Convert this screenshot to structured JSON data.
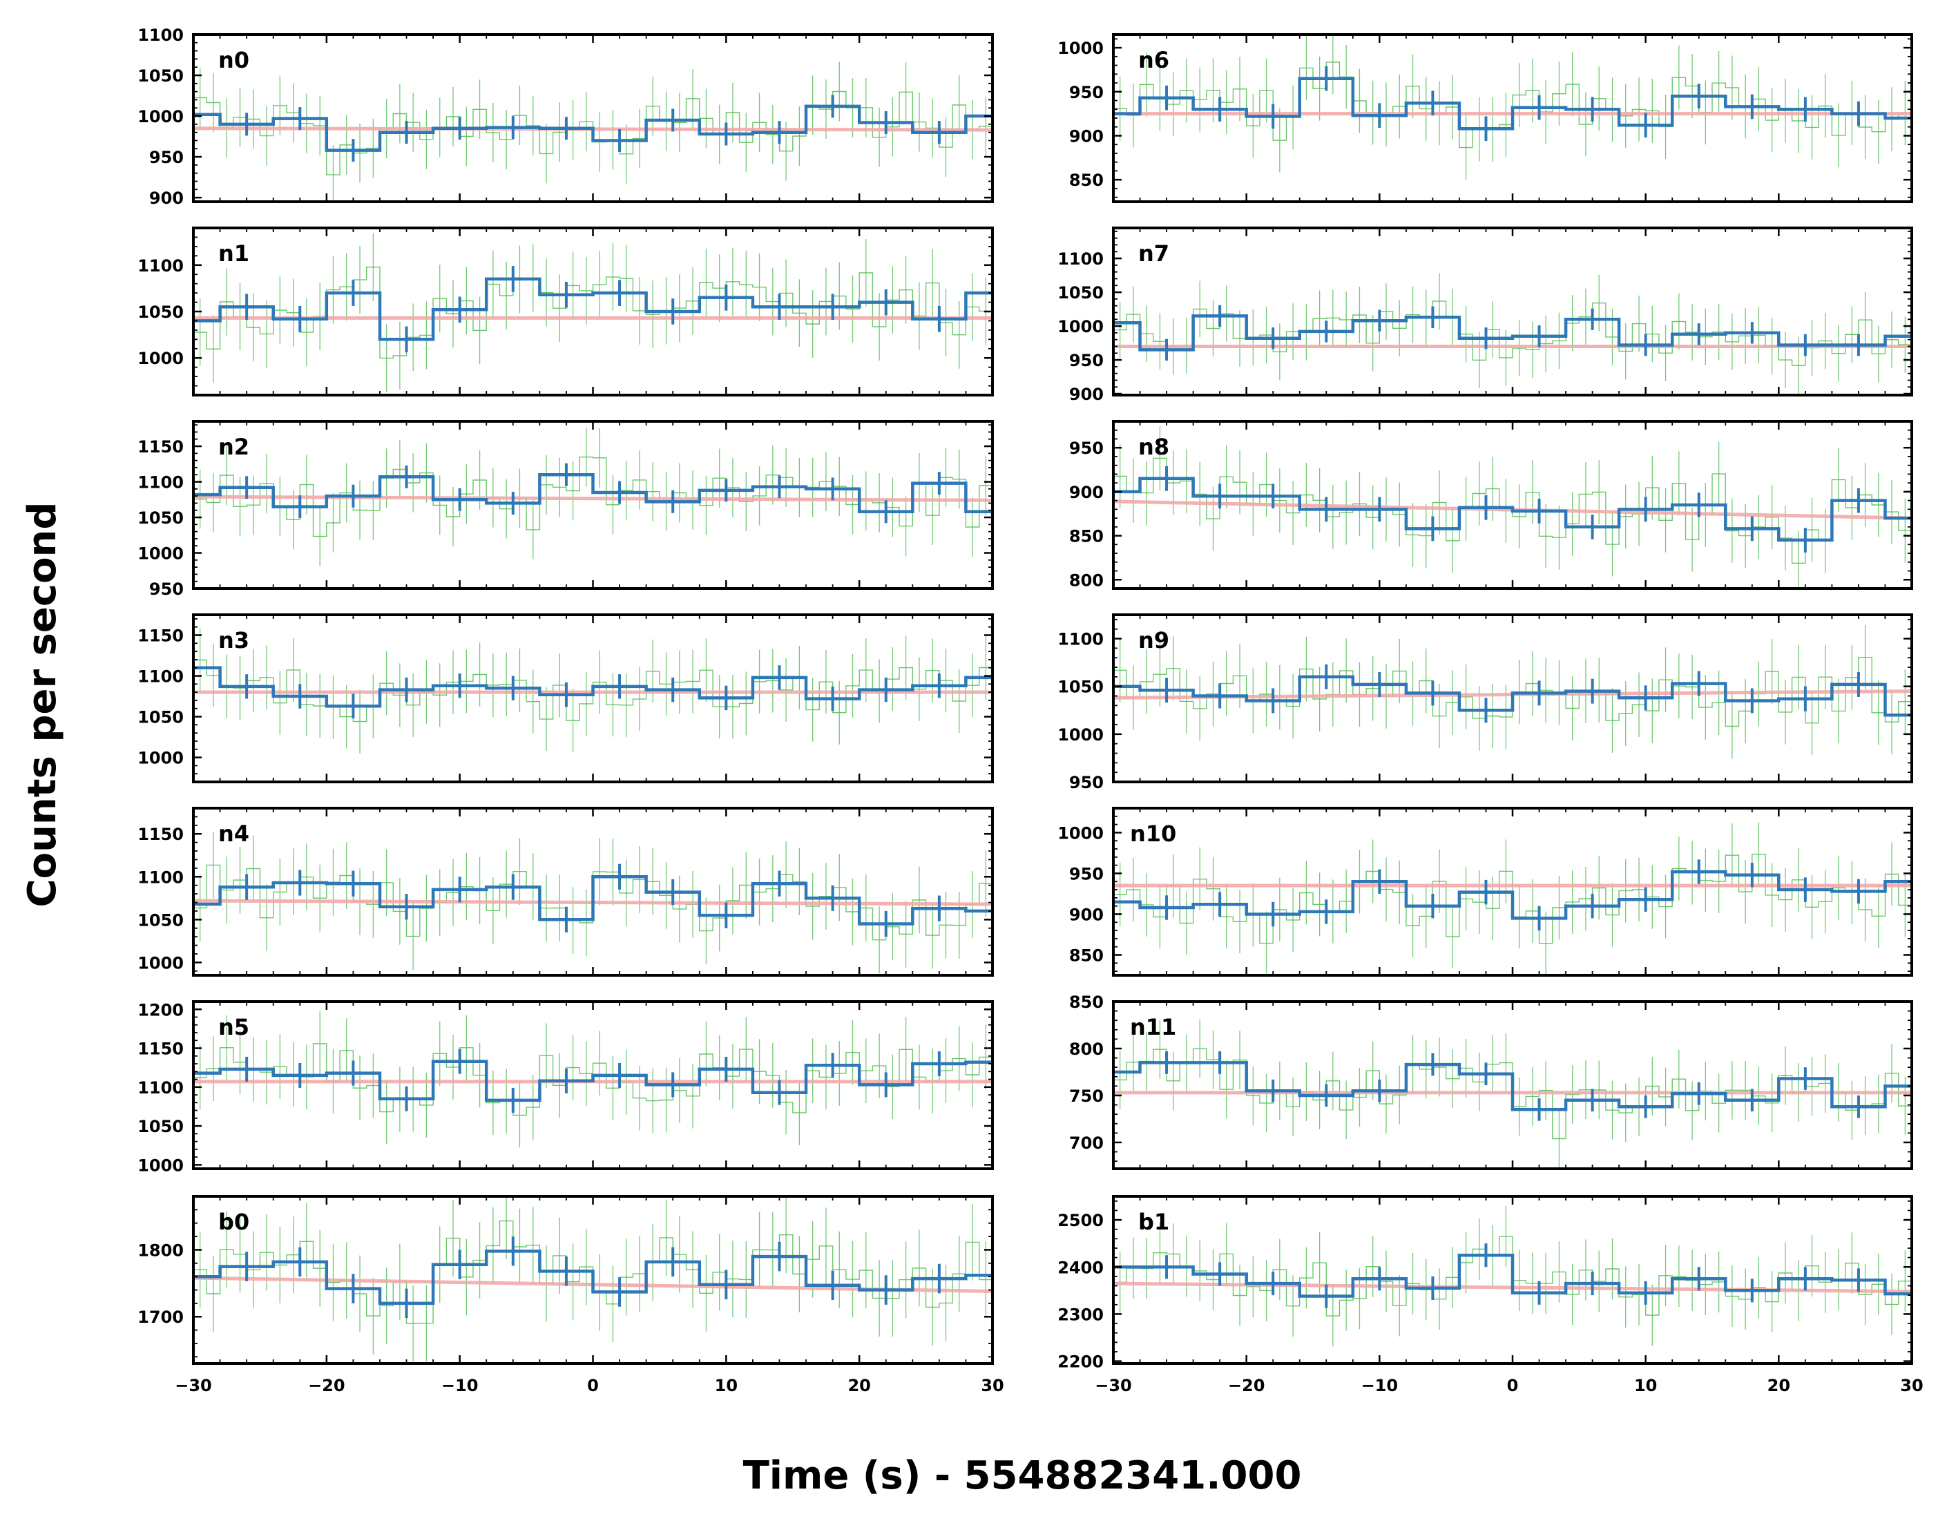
{
  "figure": {
    "ylabel": "Counts per second",
    "xlabel": "Time (s) - 554882341.000",
    "colors": {
      "fine": "#5bc05b",
      "coarse": "#2e78b7",
      "background": "#f2aaaa",
      "frame": "#000000"
    }
  },
  "chart_data": {
    "type": "line",
    "x_range": [
      -30,
      30
    ],
    "x_ticks": [
      -30,
      -20,
      -10,
      0,
      10,
      20,
      30
    ],
    "x_tick_labels": [
      "−30",
      "−20",
      "−10",
      "0",
      "10",
      "20",
      "30"
    ],
    "xlabel": "Time (s) - 554882341.000",
    "ylabel": "Counts per second",
    "grid": false,
    "coarse_bin_edges": [
      -30,
      -28,
      -24,
      -20,
      -16,
      -12,
      -8,
      -4,
      0,
      4,
      8,
      12,
      16,
      20,
      24,
      28,
      30
    ],
    "series_style": {
      "fine": "thin green histogram with error bars, 1 s bins",
      "coarse": "thick blue histogram with error bars",
      "background": "pink background model curve"
    },
    "panels": [
      {
        "label": "n0",
        "ylim": [
          895,
          1100
        ],
        "yticks": [
          900,
          950,
          1000,
          1050,
          1100
        ],
        "coarse": [
          1002,
          990,
          997,
          958,
          980,
          985,
          986,
          985,
          970,
          995,
          978,
          980,
          1012,
          992,
          980,
          1000
        ],
        "background": [
          985,
          983
        ],
        "err": 14
      },
      {
        "label": "n1",
        "ylim": [
          960,
          1140
        ],
        "yticks": [
          1000,
          1050,
          1100
        ],
        "coarse": [
          1040,
          1055,
          1042,
          1070,
          1020,
          1052,
          1085,
          1068,
          1070,
          1050,
          1065,
          1055,
          1055,
          1060,
          1042,
          1070
        ],
        "background": [
          1043,
          1043
        ],
        "err": 14
      },
      {
        "label": "n2",
        "ylim": [
          950,
          1185
        ],
        "yticks": [
          950,
          1000,
          1050,
          1100,
          1150
        ],
        "coarse": [
          1082,
          1092,
          1065,
          1080,
          1107,
          1075,
          1070,
          1110,
          1085,
          1072,
          1088,
          1093,
          1090,
          1058,
          1098,
          1058
        ],
        "background": [
          1079,
          1074
        ],
        "err": 16
      },
      {
        "label": "n3",
        "ylim": [
          970,
          1175
        ],
        "yticks": [
          1000,
          1050,
          1100,
          1150
        ],
        "coarse": [
          1110,
          1087,
          1075,
          1063,
          1083,
          1088,
          1085,
          1077,
          1087,
          1083,
          1073,
          1098,
          1072,
          1083,
          1088,
          1098
        ],
        "background": [
          1080,
          1080
        ],
        "err": 15
      },
      {
        "label": "n4",
        "ylim": [
          985,
          1180
        ],
        "yticks": [
          1000,
          1050,
          1100,
          1150
        ],
        "coarse": [
          1068,
          1088,
          1093,
          1092,
          1065,
          1085,
          1088,
          1050,
          1100,
          1082,
          1055,
          1092,
          1075,
          1045,
          1063,
          1060
        ],
        "background": [
          1072,
          1068
        ],
        "err": 15
      },
      {
        "label": "n5",
        "ylim": [
          995,
          1210
        ],
        "yticks": [
          1000,
          1050,
          1100,
          1150,
          1200
        ],
        "coarse": [
          1118,
          1123,
          1115,
          1118,
          1085,
          1133,
          1083,
          1108,
          1115,
          1103,
          1123,
          1093,
          1128,
          1103,
          1130,
          1132
        ],
        "background": [
          1107,
          1107
        ],
        "err": 16
      },
      {
        "label": "b0",
        "ylim": [
          1630,
          1880
        ],
        "yticks": [
          1700,
          1800
        ],
        "coarse": [
          1760,
          1775,
          1782,
          1742,
          1720,
          1778,
          1798,
          1768,
          1737,
          1782,
          1748,
          1790,
          1747,
          1740,
          1757,
          1762
        ],
        "background": [
          1758,
          1738
        ],
        "err": 22
      },
      {
        "label": "n6",
        "ylim": [
          825,
          1015
        ],
        "yticks": [
          850,
          900,
          950,
          1000
        ],
        "coarse": [
          925,
          943,
          930,
          922,
          965,
          923,
          937,
          908,
          932,
          930,
          912,
          945,
          933,
          930,
          925,
          920
        ],
        "background": [
          925,
          925
        ],
        "err": 14
      },
      {
        "label": "n7",
        "ylim": [
          898,
          1145
        ],
        "yticks": [
          900,
          950,
          1000,
          1050,
          1100
        ],
        "coarse": [
          1005,
          965,
          1015,
          982,
          992,
          1008,
          1013,
          982,
          985,
          1010,
          972,
          988,
          990,
          972,
          972,
          985
        ],
        "background": [
          970,
          970
        ],
        "err": 16
      },
      {
        "label": "n8",
        "ylim": [
          790,
          980
        ],
        "yticks": [
          800,
          850,
          900,
          950
        ],
        "coarse": [
          900,
          915,
          895,
          895,
          880,
          880,
          858,
          882,
          878,
          860,
          880,
          885,
          858,
          845,
          890,
          870
        ],
        "background": [
          889,
          870
        ],
        "err": 14
      },
      {
        "label": "n9",
        "ylim": [
          950,
          1125
        ],
        "yticks": [
          950,
          1000,
          1050,
          1100
        ],
        "coarse": [
          1050,
          1046,
          1040,
          1035,
          1060,
          1052,
          1043,
          1025,
          1043,
          1045,
          1038,
          1053,
          1035,
          1037,
          1052,
          1020
        ],
        "background": [
          1038,
          1045
        ],
        "err": 13
      },
      {
        "label": "n10",
        "ylim": [
          825,
          1030
        ],
        "yticks": [
          850,
          900,
          950,
          1000
        ],
        "coarse": [
          915,
          908,
          912,
          900,
          903,
          940,
          910,
          927,
          895,
          910,
          918,
          952,
          948,
          930,
          928,
          940
        ],
        "background": [
          935,
          935
        ],
        "err": 15
      },
      {
        "label": "n11",
        "ylim": [
          672,
          850
        ],
        "yticks": [
          700,
          750,
          800,
          850
        ],
        "coarse": [
          775,
          785,
          785,
          755,
          750,
          755,
          783,
          773,
          735,
          745,
          738,
          752,
          745,
          768,
          738,
          760
        ],
        "background": [
          753,
          753
        ],
        "err": 12
      },
      {
        "label": "b1",
        "ylim": [
          2195,
          2550
        ],
        "yticks": [
          2200,
          2300,
          2400,
          2500
        ],
        "coarse": [
          2400,
          2400,
          2385,
          2365,
          2338,
          2375,
          2355,
          2425,
          2345,
          2365,
          2345,
          2375,
          2350,
          2375,
          2372,
          2343
        ],
        "background": [
          2365,
          2348
        ],
        "err": 25
      }
    ]
  }
}
